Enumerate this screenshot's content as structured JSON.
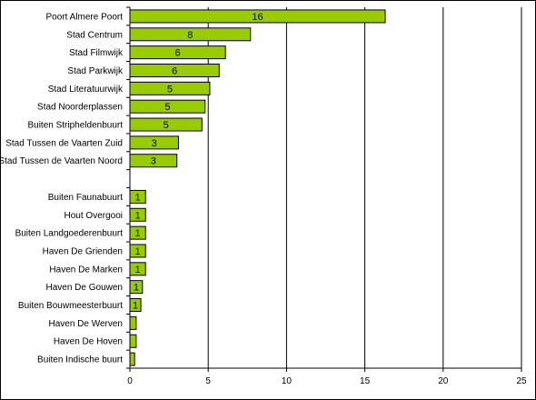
{
  "chart_data": {
    "type": "bar",
    "orientation": "horizontal",
    "title": "",
    "xlabel": "",
    "ylabel": "",
    "xlim": [
      0,
      25
    ],
    "xticks": [
      0,
      5,
      10,
      15,
      20,
      25
    ],
    "grid": "vertical lines at major ticks",
    "legend": "none",
    "bar_color": "#99CC00",
    "bar_edge_color": "#000000",
    "categories": [
      "Poort Almere Poort",
      "Stad Centrum",
      "Stad Filmwijk",
      "Stad Parkwijk",
      "Stad Literatuurwijk",
      "Stad Noorderplassen",
      "Buiten Stripheldenbuurt",
      "Stad Tussen de Vaarten Zuid",
      "Stad Tussen de Vaarten Noord",
      "",
      "Buiten Faunabuurt",
      "Hout Overgooi",
      "Buiten Landgoederenbuurt",
      "Haven De Grienden",
      "Haven De Marken",
      "Haven De Gouwen",
      "Buiten Bouwmeesterbuurt",
      "Haven De Werven",
      "Haven De Hoven",
      "Buiten Indische buurt"
    ],
    "values": [
      16.3,
      7.7,
      6.1,
      5.7,
      5.1,
      4.8,
      4.6,
      3.1,
      3.0,
      null,
      1.0,
      1.0,
      1.0,
      1.0,
      1.0,
      0.8,
      0.7,
      0.4,
      0.4,
      0.3
    ],
    "data_labels": [
      "16",
      "8",
      "6",
      "6",
      "5",
      "5",
      "5",
      "3",
      "3",
      "",
      "1",
      "1",
      "1",
      "1",
      "1",
      "1",
      "1",
      "",
      "",
      ""
    ]
  }
}
